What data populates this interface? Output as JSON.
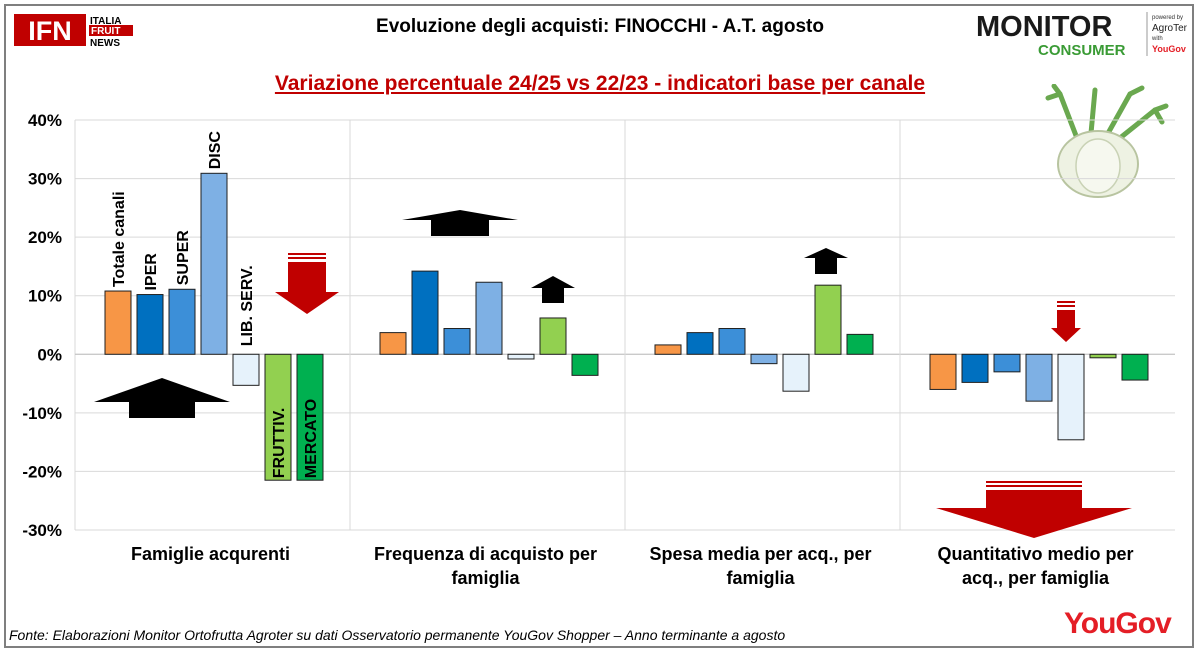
{
  "header": {
    "title": "Evoluzione degli acquisti: FINOCCHI - A.T. agosto",
    "subtitle": "Variazione percentuale 24/25 vs 22/23 - indicatori base per canale"
  },
  "logos": {
    "ifn_main": "IFN",
    "ifn_lines": [
      "ITALIA",
      "FRUIT",
      "NEWS"
    ],
    "monitor_top": "MONITOR",
    "monitor_bottom": "CONSUMER",
    "powered_by": "powered by",
    "agroter": "AgroTer",
    "with": "with",
    "yougov_small": "YouGov",
    "yougov_big": "YouGov"
  },
  "footer": {
    "source": "Fonte: Elaborazioni Monitor Ortofrutta Agroter su dati Osservatorio permanente YouGov Shopper  – Anno terminante a agosto"
  },
  "colors": {
    "title_red": "#c00000",
    "arrow_red": "#c00000",
    "arrow_black": "#000000"
  },
  "chart_data": {
    "type": "bar",
    "ylim": [
      -30,
      40
    ],
    "yticks": [
      -30,
      -20,
      -10,
      0,
      10,
      20,
      30,
      40
    ],
    "ytick_labels": [
      "-30%",
      "-20%",
      "-10%",
      "0%",
      "10%",
      "20%",
      "30%",
      "40%"
    ],
    "grid": true,
    "categories": [
      "Famiglie acqurenti",
      "Frequenza di acquisto per famiglia",
      "Spesa media per acq., per famiglia",
      "Quantitativo medio per acq., per famiglia"
    ],
    "series": [
      {
        "name": "Totale canali",
        "color": "#f79646",
        "values": [
          10.8,
          3.7,
          1.6,
          -6.0
        ]
      },
      {
        "name": "IPER",
        "color": "#0070c0",
        "values": [
          10.2,
          14.2,
          3.7,
          -4.8
        ]
      },
      {
        "name": "SUPER",
        "color": "#3c8fd8",
        "values": [
          11.1,
          4.4,
          4.4,
          -3.0
        ]
      },
      {
        "name": "DISC",
        "color": "#7eb0e4",
        "values": [
          30.9,
          12.3,
          -1.6,
          -8.0
        ]
      },
      {
        "name": "LIB. SERV.",
        "color": "#e6f2fb",
        "values": [
          -5.3,
          -0.8,
          -6.3,
          -14.6
        ]
      },
      {
        "name": "FRUTTIV.",
        "color": "#92d050",
        "values": [
          -21.5,
          6.2,
          11.8,
          -0.6
        ]
      },
      {
        "name": "MERCATO",
        "color": "#00b050",
        "values": [
          -21.5,
          -3.6,
          3.4,
          -4.4
        ]
      }
    ]
  }
}
